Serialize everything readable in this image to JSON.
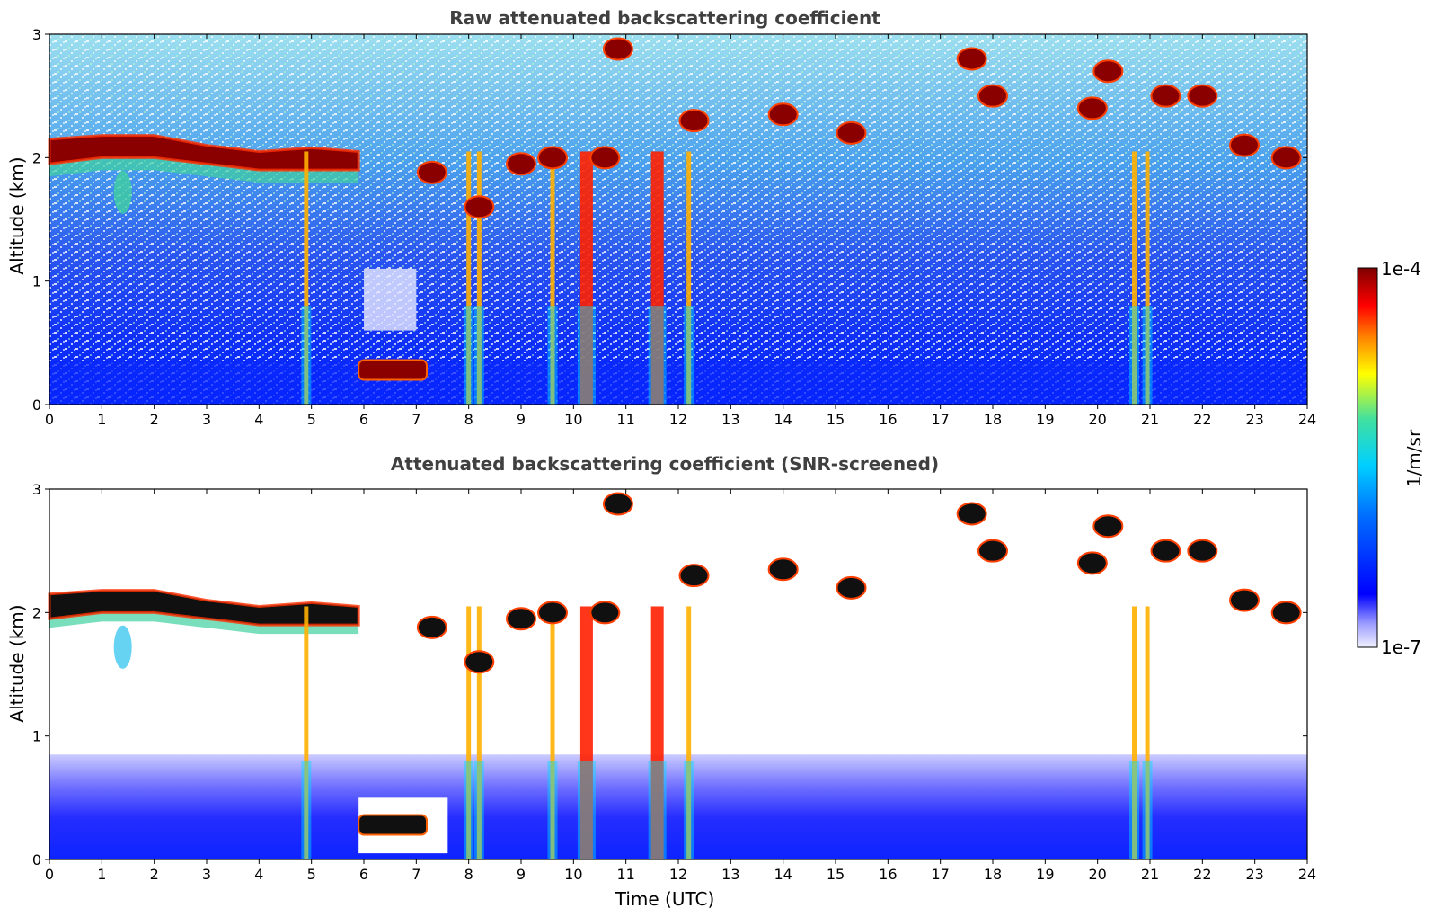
{
  "chart_data": [
    {
      "type": "heatmap",
      "title": "Raw attenuated backscattering coefficient",
      "xlabel": "",
      "ylabel": "Altitude (km)",
      "xlim": [
        0,
        24
      ],
      "ylim": [
        0,
        3
      ],
      "x_ticks": [
        "0",
        "1",
        "2",
        "3",
        "4",
        "5",
        "6",
        "7",
        "8",
        "9",
        "10",
        "11",
        "12",
        "13",
        "14",
        "15",
        "16",
        "17",
        "18",
        "19",
        "20",
        "21",
        "22",
        "23",
        "24"
      ],
      "y_ticks": [
        "0",
        "1",
        "2",
        "3"
      ],
      "features": {
        "cloud_layer_2km": {
          "x_range": [
            0,
            5.9
          ],
          "altitude_km": 2.0
        },
        "low_cloud": {
          "x_range": [
            5.9,
            7.2
          ],
          "altitude_km": 0.28
        },
        "precip_columns_utc": [
          4.9,
          8.0,
          8.2,
          9.6,
          10.25,
          11.6,
          12.2,
          20.7,
          20.95
        ],
        "broken_clouds": [
          {
            "x": 7.3,
            "y": 1.88
          },
          {
            "x": 8.2,
            "y": 1.6
          },
          {
            "x": 9.0,
            "y": 1.95
          },
          {
            "x": 9.6,
            "y": 2.0
          },
          {
            "x": 10.6,
            "y": 2.0
          },
          {
            "x": 10.85,
            "y": 2.88
          },
          {
            "x": 12.3,
            "y": 2.3
          },
          {
            "x": 14.0,
            "y": 2.35
          },
          {
            "x": 15.3,
            "y": 2.2
          },
          {
            "x": 17.6,
            "y": 2.8
          },
          {
            "x": 18.0,
            "y": 2.5
          },
          {
            "x": 19.9,
            "y": 2.4
          },
          {
            "x": 20.2,
            "y": 2.7
          },
          {
            "x": 21.3,
            "y": 2.5
          },
          {
            "x": 22.0,
            "y": 2.5
          },
          {
            "x": 22.8,
            "y": 2.1
          },
          {
            "x": 23.6,
            "y": 2.0
          }
        ]
      }
    },
    {
      "type": "heatmap",
      "title": "Attenuated backscattering coefficient (SNR-screened)",
      "xlabel": "Time (UTC)",
      "ylabel": "Altitude (km)",
      "xlim": [
        0,
        24
      ],
      "ylim": [
        0,
        3
      ],
      "x_ticks": [
        "0",
        "1",
        "2",
        "3",
        "4",
        "5",
        "6",
        "7",
        "8",
        "9",
        "10",
        "11",
        "12",
        "13",
        "14",
        "15",
        "16",
        "17",
        "18",
        "19",
        "20",
        "21",
        "22",
        "23",
        "24"
      ],
      "y_ticks": [
        "0",
        "1",
        "2",
        "3"
      ]
    }
  ],
  "colorbar": {
    "label": "1/m/sr",
    "min_label": "1e-7",
    "max_label": "1e-4",
    "colormap": [
      "#f0f0ff",
      "#0000ff",
      "#00bfff",
      "#00e0a0",
      "#ffff00",
      "#ff8000",
      "#ff0000",
      "#800000"
    ]
  }
}
